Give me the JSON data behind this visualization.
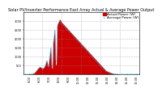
{
  "title": "Solar PV/Inverter Performance East Array Actual & Average Power Output",
  "title_fontsize": 3.5,
  "bar_color": "#cc0000",
  "avg_line_color": "#00ccff",
  "background_color": "#ffffff",
  "plot_bg_color": "#ffffff",
  "grid_color": "#8888aa",
  "tick_fontsize": 2.5,
  "ylim": [
    0,
    3500
  ],
  "yticks": [
    500,
    1000,
    1500,
    2000,
    2500,
    3000
  ],
  "num_points": 144,
  "legend_actual": "Actual Power (W)",
  "legend_avg": "Average Power (W)",
  "legend_fontsize": 3.0,
  "actual_values": [
    0,
    0,
    0,
    0,
    0,
    0,
    0,
    0,
    5,
    8,
    12,
    20,
    35,
    50,
    80,
    120,
    180,
    250,
    300,
    350,
    400,
    420,
    380,
    350,
    300,
    350,
    400,
    500,
    650,
    800,
    600,
    400,
    800,
    1200,
    1600,
    400,
    300,
    1800,
    2200,
    2600,
    500,
    600,
    2800,
    2900,
    3000,
    3100,
    3050,
    2950,
    2900,
    2850,
    2800,
    2750,
    2700,
    2650,
    2600,
    2550,
    2500,
    2450,
    2400,
    2350,
    2300,
    2250,
    2200,
    2150,
    2100,
    2050,
    2000,
    1950,
    1900,
    1850,
    1800,
    1750,
    1700,
    1650,
    1600,
    1550,
    1500,
    1450,
    1400,
    1350,
    1300,
    1250,
    1200,
    1150,
    1100,
    1050,
    1000,
    950,
    900,
    850,
    800,
    750,
    700,
    650,
    600,
    550,
    500,
    450,
    400,
    350,
    300,
    250,
    200,
    180,
    160,
    140,
    120,
    100,
    80,
    60,
    50,
    40,
    30,
    20,
    15,
    10,
    8,
    5,
    3,
    2,
    1,
    0,
    0,
    0,
    0,
    0,
    0,
    0,
    0,
    0,
    0,
    0,
    0,
    0,
    0,
    0,
    0,
    0,
    0,
    0,
    0,
    0,
    0,
    0
  ],
  "avg_values": [
    0,
    0,
    0,
    0,
    0,
    0,
    0,
    0,
    3,
    6,
    10,
    18,
    30,
    45,
    70,
    110,
    160,
    220,
    270,
    320,
    370,
    390,
    360,
    340,
    290,
    330,
    380,
    470,
    610,
    750,
    580,
    390,
    750,
    1100,
    1450,
    600,
    400,
    1700,
    2100,
    2450,
    800,
    700,
    2650,
    2800,
    2900,
    3000,
    2950,
    2870,
    2820,
    2780,
    2730,
    2680,
    2630,
    2580,
    2530,
    2480,
    2430,
    2380,
    2330,
    2280,
    2230,
    2180,
    2130,
    2080,
    2030,
    1980,
    1930,
    1880,
    1830,
    1780,
    1730,
    1680,
    1630,
    1580,
    1530,
    1480,
    1430,
    1380,
    1330,
    1280,
    1230,
    1180,
    1130,
    1080,
    1030,
    980,
    930,
    880,
    830,
    780,
    730,
    680,
    630,
    580,
    530,
    480,
    430,
    380,
    330,
    280,
    230,
    190,
    160,
    140,
    120,
    100,
    80,
    65,
    50,
    38,
    28,
    20,
    14,
    10,
    7,
    5,
    4,
    3,
    2,
    1,
    0,
    0,
    0,
    0,
    0,
    0,
    0,
    0,
    0,
    0,
    0,
    0,
    0,
    0,
    0,
    0,
    0,
    0,
    0,
    0,
    0,
    0,
    0,
    0
  ],
  "xtick_positions": [
    8,
    20,
    32,
    44,
    56,
    68,
    80,
    92,
    104,
    116,
    128,
    140
  ],
  "xtick_labels": [
    "5:00",
    "6:00",
    "7:00",
    "8:00",
    "9:00",
    "10:00",
    "11:00",
    "12:00",
    "13:00",
    "14:00",
    "15:00",
    "16:00"
  ]
}
